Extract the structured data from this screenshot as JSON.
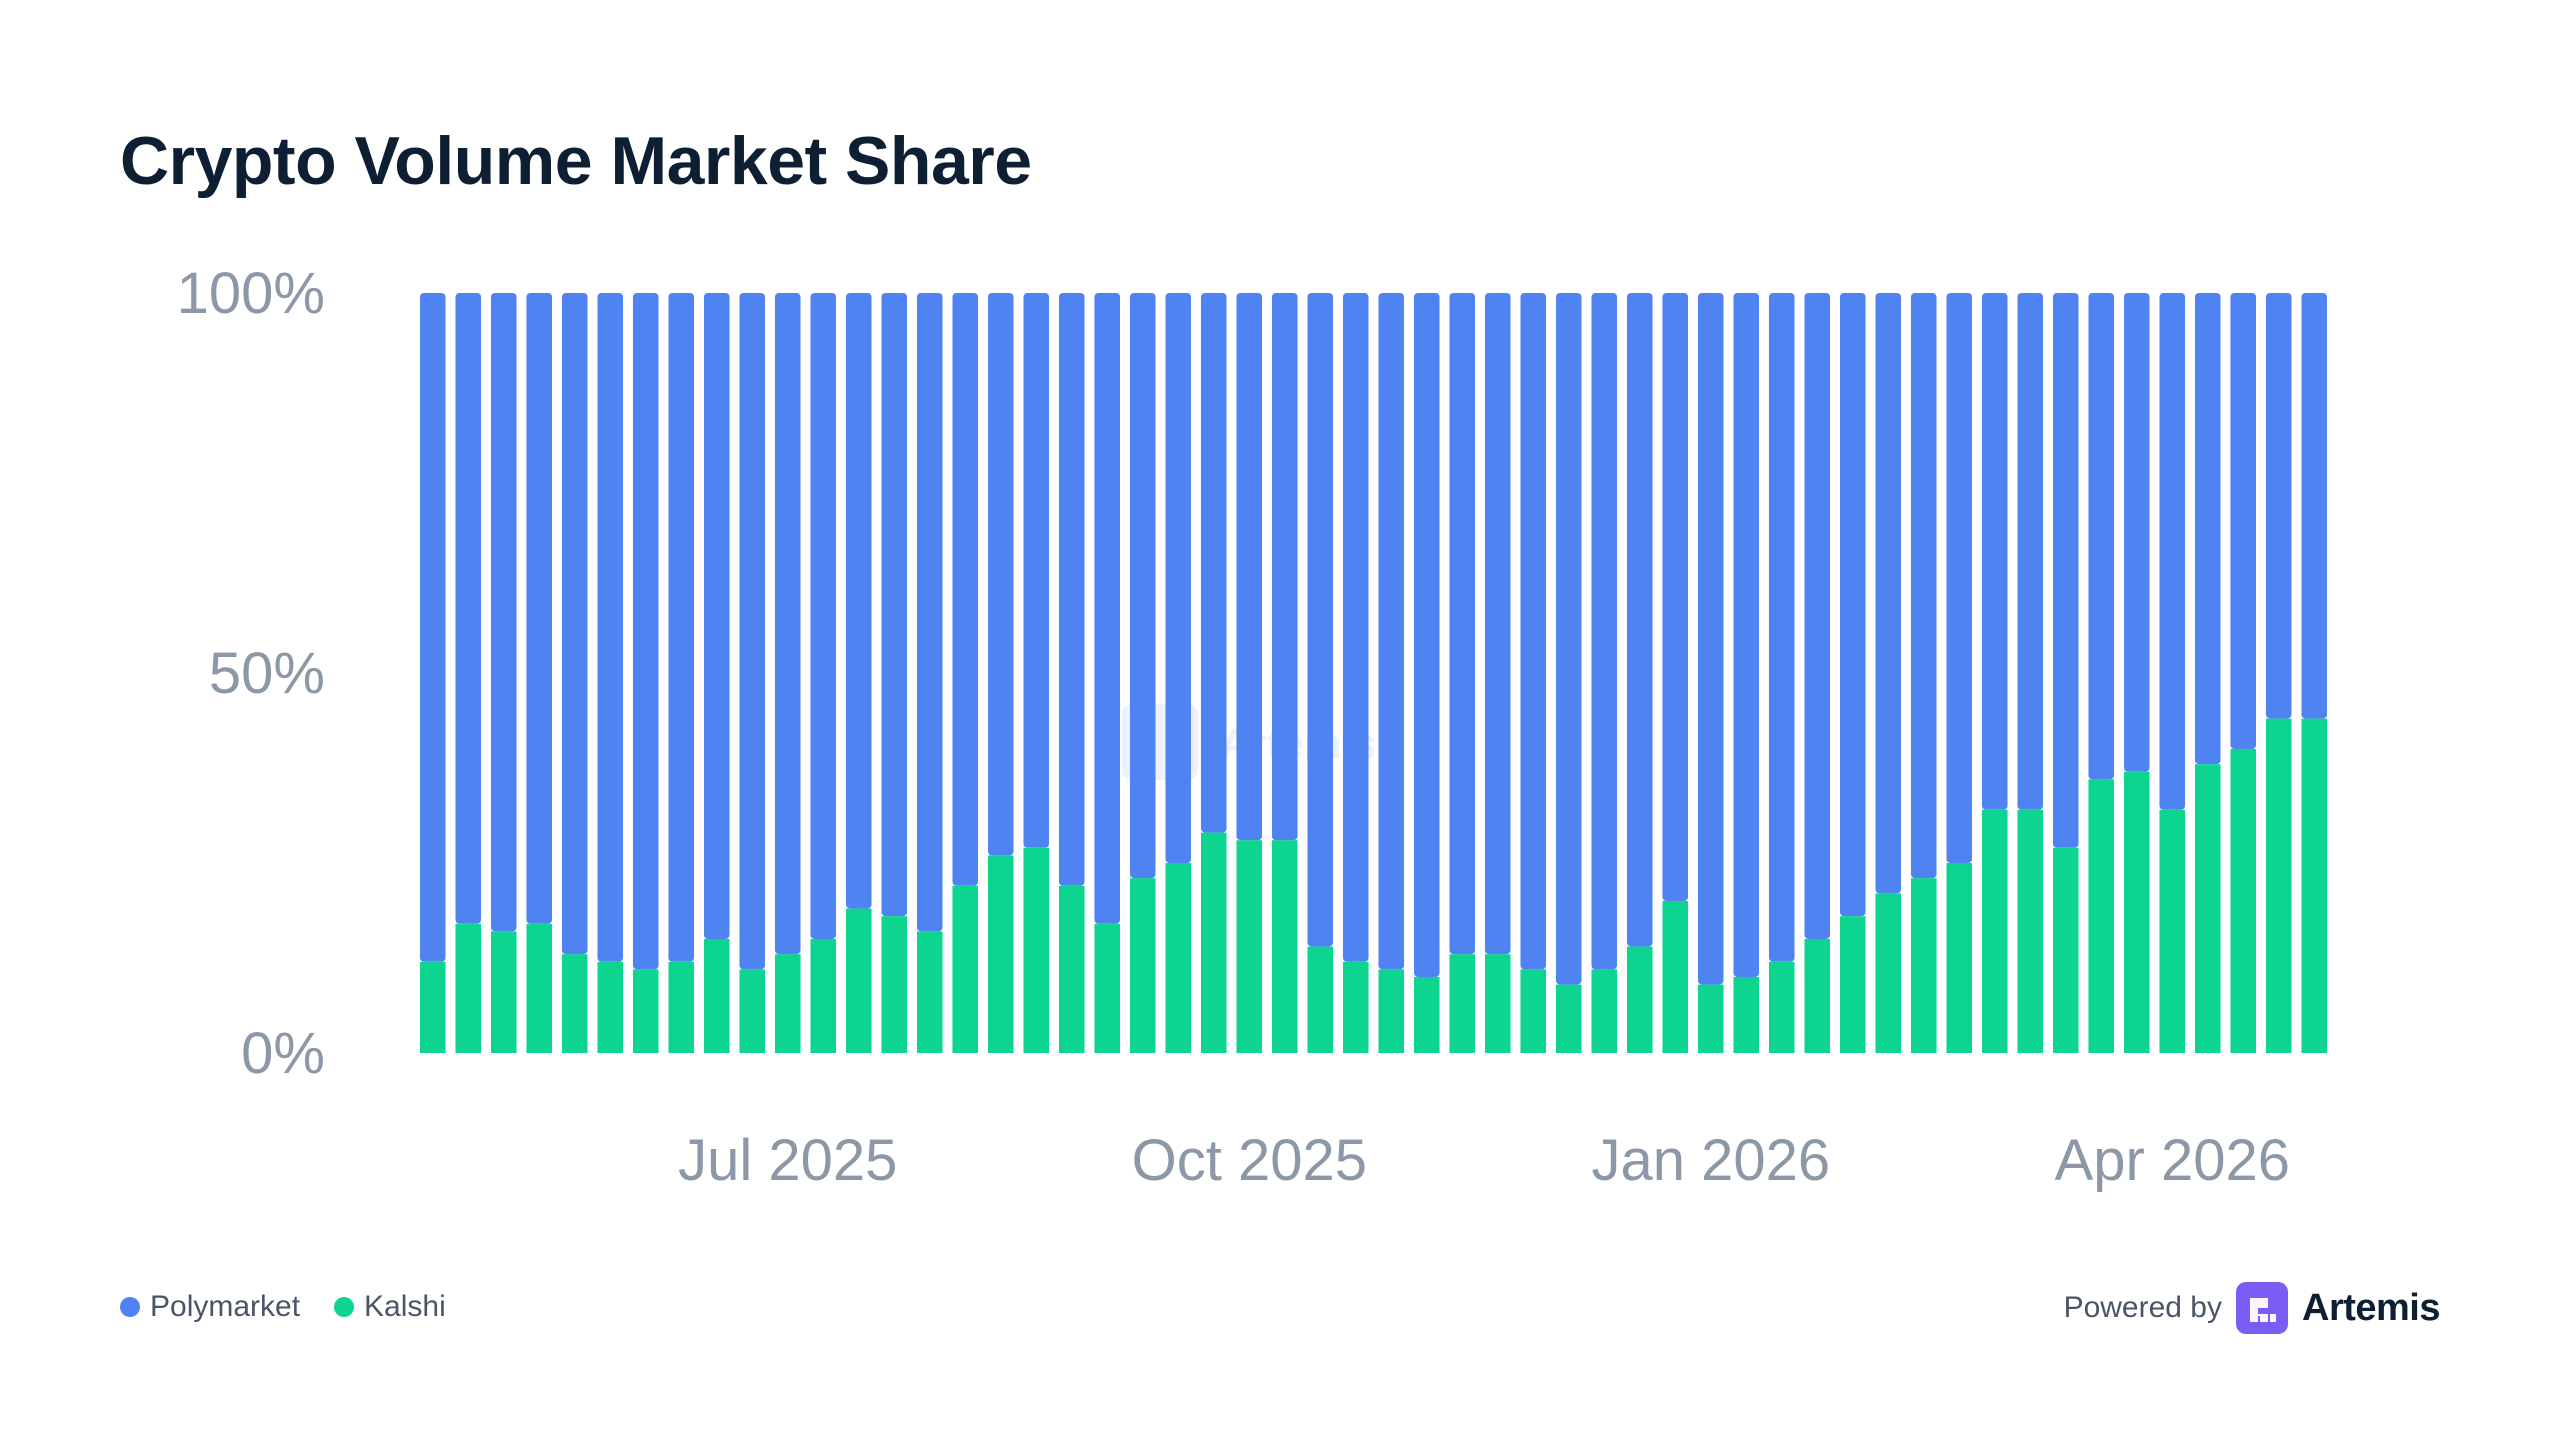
{
  "title": "Crypto Volume Market Share",
  "colors": {
    "polymarket": "#5083f2",
    "kalshi": "#0dd48f",
    "axis_text": "#8c97a8",
    "title": "#0f1f33"
  },
  "legend": [
    {
      "label": "Polymarket",
      "color": "#5083f2"
    },
    {
      "label": "Kalshi",
      "color": "#0dd48f"
    }
  ],
  "footer": {
    "powered_by": "Powered by",
    "brand": "Artemis",
    "logo_icon": "artemis-logo-icon"
  },
  "watermark": "Artemis",
  "chart_data": {
    "type": "bar",
    "stacked": true,
    "ylabel": "",
    "xlabel": "",
    "ylim": [
      0,
      100
    ],
    "y_ticks": [
      "0%",
      "50%",
      "100%"
    ],
    "y_tick_values": [
      0,
      50,
      100
    ],
    "x_tick_labels": [
      {
        "label": "Jul 2025",
        "index": 10
      },
      {
        "label": "Oct 2025",
        "index": 23
      },
      {
        "label": "Jan 2026",
        "index": 36
      },
      {
        "label": "Apr 2026",
        "index": 49
      }
    ],
    "grid": false,
    "legend_position": "bottom-left",
    "bar_count": 54,
    "series": [
      {
        "name": "Kalshi",
        "color": "#0dd48f",
        "values": [
          12,
          17,
          16,
          17,
          13,
          12,
          11,
          12,
          15,
          11,
          13,
          15,
          19,
          18,
          16,
          22,
          26,
          27,
          22,
          17,
          23,
          25,
          29,
          28,
          28,
          14,
          12,
          11,
          10,
          13,
          13,
          11,
          9,
          11,
          14,
          20,
          9,
          10,
          12,
          15,
          18,
          21,
          23,
          25,
          32,
          32,
          27,
          36,
          37,
          32,
          38,
          40,
          44,
          44
        ]
      },
      {
        "name": "Polymarket",
        "color": "#5083f2",
        "values": [
          88,
          83,
          84,
          83,
          87,
          88,
          89,
          88,
          85,
          89,
          87,
          85,
          81,
          82,
          84,
          78,
          74,
          73,
          78,
          83,
          77,
          75,
          71,
          72,
          72,
          86,
          88,
          89,
          90,
          87,
          87,
          89,
          91,
          89,
          86,
          80,
          91,
          90,
          88,
          85,
          82,
          79,
          77,
          75,
          68,
          68,
          73,
          64,
          63,
          68,
          62,
          60,
          56,
          56
        ]
      }
    ]
  }
}
